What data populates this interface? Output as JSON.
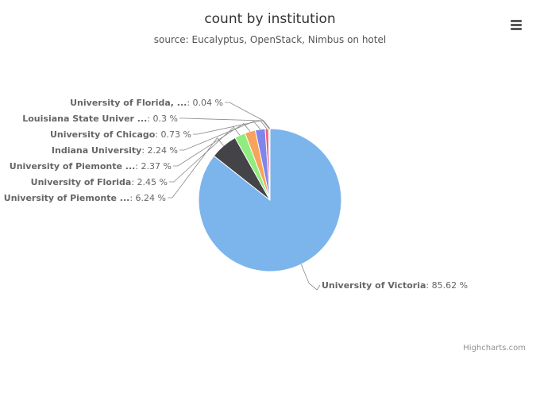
{
  "chart_data": {
    "type": "pie",
    "title": "count by institution",
    "subtitle": "source: Eucalyptus, OpenStack, Nimbus on hotel",
    "slices": [
      {
        "name": "University of Victoria",
        "value": 85.62,
        "value_label": "85.62 %",
        "color": "#7cb5ec"
      },
      {
        "name": "University of Piemonte ...",
        "value": 6.24,
        "value_label": "6.24 %",
        "color": "#434348"
      },
      {
        "name": "University of Florida",
        "value": 2.45,
        "value_label": "2.45 %",
        "color": "#90ed7d"
      },
      {
        "name": "University of Piemonte ...",
        "value": 2.37,
        "value_label": "2.37 %",
        "color": "#f7a35c"
      },
      {
        "name": "Indiana University",
        "value": 2.24,
        "value_label": "2.24 %",
        "color": "#8085e9"
      },
      {
        "name": "University of Chicago",
        "value": 0.73,
        "value_label": "0.73 %",
        "color": "#f15c80"
      },
      {
        "name": "Louisiana State Univer ...",
        "value": 0.3,
        "value_label": "0.3 %",
        "color": "#e4d354"
      },
      {
        "name": "University of Florida, ...",
        "value": 0.04,
        "value_label": "0.04 %",
        "color": "#2b908f"
      }
    ]
  },
  "credits": "Highcharts.com",
  "icons": {
    "menu": "hamburger-menu-icon"
  }
}
